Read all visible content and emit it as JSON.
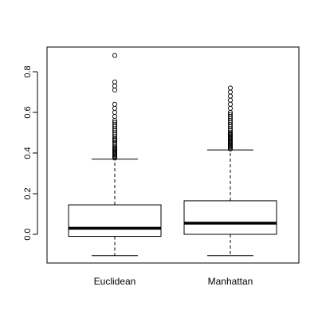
{
  "chart_data": {
    "type": "boxplot",
    "title": "",
    "xlabel": "",
    "ylabel": "",
    "ylim": [
      -0.14,
      0.9
    ],
    "y_ticks": [
      "0.0",
      "0.2",
      "0.4",
      "0.6",
      "0.8"
    ],
    "grid": false,
    "legend": "none",
    "colors": {
      "box_stroke": "#000000",
      "median": "#000000",
      "background": "#ffffff"
    },
    "categories": [
      "Euclidean",
      "Manhattan"
    ],
    "boxes": [
      {
        "name": "Euclidean",
        "whisker_low": -0.105,
        "q1": -0.01,
        "median": 0.03,
        "q3": 0.145,
        "whisker_high": 0.37,
        "outliers": [
          0.88,
          0.75,
          0.73,
          0.71,
          0.64,
          0.62,
          0.6,
          0.58,
          0.56,
          0.55,
          0.54,
          0.53,
          0.52,
          0.51,
          0.5,
          0.49,
          0.48,
          0.47,
          0.465,
          0.46,
          0.45,
          0.44,
          0.43,
          0.425,
          0.42,
          0.415,
          0.41,
          0.405,
          0.4,
          0.395,
          0.39,
          0.385,
          0.38,
          0.375
        ]
      },
      {
        "name": "Manhattan",
        "whisker_low": -0.105,
        "q1": 0.0,
        "median": 0.055,
        "q3": 0.165,
        "whisker_high": 0.415,
        "outliers": [
          0.72,
          0.7,
          0.68,
          0.66,
          0.64,
          0.62,
          0.6,
          0.59,
          0.58,
          0.57,
          0.56,
          0.55,
          0.54,
          0.53,
          0.52,
          0.51,
          0.5,
          0.495,
          0.49,
          0.485,
          0.48,
          0.475,
          0.47,
          0.465,
          0.46,
          0.455,
          0.45,
          0.445,
          0.44,
          0.435,
          0.43,
          0.425,
          0.42
        ]
      }
    ]
  }
}
